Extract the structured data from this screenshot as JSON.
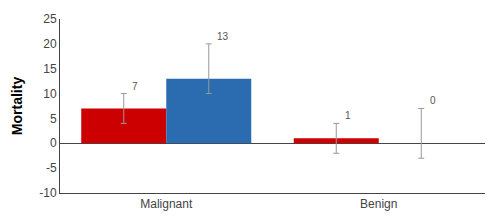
{
  "chart_data": {
    "type": "bar",
    "categories": [
      "Malignant",
      "Benign"
    ],
    "series": [
      {
        "color": "#cc0000",
        "values": [
          7,
          1
        ],
        "errors_up": [
          3,
          3
        ],
        "errors_dn": [
          3,
          3
        ]
      },
      {
        "color": "#2b6cb0",
        "values": [
          13,
          0
        ],
        "errors_up": [
          7,
          7
        ],
        "errors_dn": [
          3,
          3
        ]
      }
    ],
    "ylabel": "Mortality",
    "ylim": [
      -10,
      25
    ],
    "yticks": [
      -10,
      -5,
      0,
      5,
      10,
      15,
      20,
      25
    ],
    "grid": false,
    "data_labels": true
  }
}
